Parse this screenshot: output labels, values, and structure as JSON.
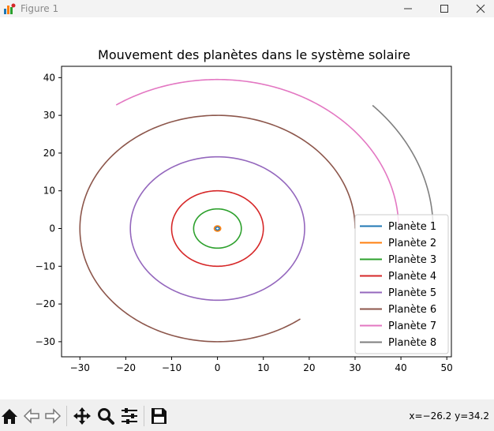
{
  "window": {
    "title": "Figure 1"
  },
  "toolbar": {
    "icons": [
      "home-icon",
      "back-arrow-icon",
      "forward-arrow-icon",
      "pan-icon",
      "zoom-icon",
      "configure-subplots-icon",
      "save-icon"
    ],
    "coords": "x=−26.2 y=34.2"
  },
  "chart_data": {
    "type": "line",
    "title": "Mouvement des planètes dans le système solaire",
    "xlabel": "",
    "ylabel": "",
    "xlim": [
      -34,
      51
    ],
    "ylim": [
      -34,
      43
    ],
    "xticks": [
      -30,
      -20,
      -10,
      0,
      10,
      20,
      30,
      40,
      50
    ],
    "yticks": [
      -30,
      -20,
      -10,
      0,
      10,
      20,
      30,
      40
    ],
    "grid": false,
    "legend": "lower right",
    "series": [
      {
        "name": "Planète 1",
        "color": "#1f77b4",
        "radius": 0.4,
        "start_angle_deg": 0,
        "end_angle_deg": 360
      },
      {
        "name": "Planète 2",
        "color": "#ff7f0e",
        "radius": 0.7,
        "start_angle_deg": 0,
        "end_angle_deg": 360
      },
      {
        "name": "Planète 3",
        "color": "#2ca02c",
        "radius": 5.2,
        "start_angle_deg": 0,
        "end_angle_deg": 360
      },
      {
        "name": "Planète 4",
        "color": "#d62728",
        "radius": 10,
        "start_angle_deg": 0,
        "end_angle_deg": 360
      },
      {
        "name": "Planète 5",
        "color": "#9467bd",
        "radius": 19,
        "start_angle_deg": 0,
        "end_angle_deg": 360
      },
      {
        "name": "Planète 6",
        "color": "#8c564b",
        "radius": 30,
        "start_angle_deg": 0,
        "end_angle_deg": 307
      },
      {
        "name": "Planète 7",
        "color": "#e377c2",
        "radius": 39.5,
        "start_angle_deg": 0,
        "end_angle_deg": 124
      },
      {
        "name": "Planète 8",
        "color": "#7f7f7f",
        "radius": 47,
        "start_angle_deg": 0,
        "end_angle_deg": 44
      }
    ]
  }
}
